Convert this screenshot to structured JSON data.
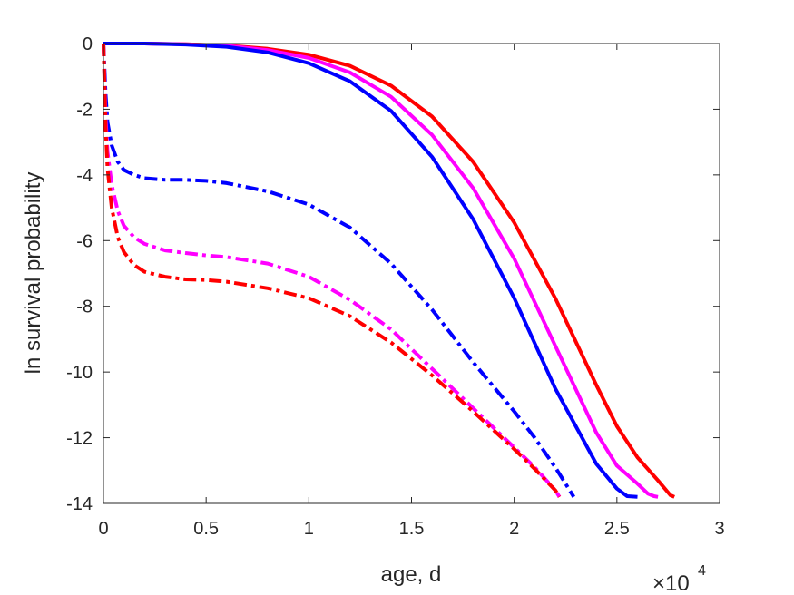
{
  "chart_data": {
    "type": "line",
    "xlabel": "age, d",
    "ylabel": "ln survival probability",
    "x_exponent_label": "×10",
    "x_exponent_power": "4",
    "xlim": [
      0,
      30000
    ],
    "ylim": [
      -14,
      0
    ],
    "x_ticks": [
      0,
      5000,
      10000,
      15000,
      20000,
      25000,
      30000
    ],
    "x_tick_labels": [
      "0",
      "0.5",
      "1",
      "1.5",
      "2",
      "2.5",
      "3"
    ],
    "y_ticks": [
      0,
      -2,
      -4,
      -6,
      -8,
      -10,
      -12,
      -14
    ],
    "y_tick_labels": [
      "0",
      "-2",
      "-4",
      "-6",
      "-8",
      "-10",
      "-12",
      "-14"
    ],
    "grid": false,
    "series": [
      {
        "color": "#ff0000",
        "style": "solid",
        "x": [
          0,
          2000,
          4000,
          6000,
          8000,
          10000,
          12000,
          14000,
          16000,
          18000,
          20000,
          22000,
          24000,
          25000,
          26000,
          27000,
          27600,
          27800
        ],
        "y": [
          0,
          0,
          -0.02,
          -0.06,
          -0.16,
          -0.34,
          -0.68,
          -1.28,
          -2.22,
          -3.6,
          -5.45,
          -7.75,
          -10.4,
          -11.65,
          -12.6,
          -13.3,
          -13.75,
          -13.8
        ]
      },
      {
        "color": "#ff00ff",
        "style": "solid",
        "x": [
          0,
          2000,
          4000,
          6000,
          8000,
          10000,
          12000,
          14000,
          16000,
          18000,
          20000,
          22000,
          24000,
          25000,
          26000,
          26500,
          26800,
          27000
        ],
        "y": [
          0,
          0,
          -0.02,
          -0.07,
          -0.2,
          -0.44,
          -0.88,
          -1.62,
          -2.78,
          -4.4,
          -6.55,
          -9.2,
          -11.85,
          -12.85,
          -13.4,
          -13.7,
          -13.78,
          -13.8
        ]
      },
      {
        "color": "#0000ff",
        "style": "solid",
        "x": [
          0,
          2000,
          4000,
          6000,
          8000,
          10000,
          12000,
          14000,
          16000,
          18000,
          20000,
          22000,
          24000,
          25000,
          25500,
          26000
        ],
        "y": [
          0,
          0,
          -0.03,
          -0.1,
          -0.27,
          -0.6,
          -1.15,
          -2.05,
          -3.45,
          -5.35,
          -7.75,
          -10.5,
          -12.8,
          -13.55,
          -13.78,
          -13.8
        ]
      },
      {
        "color": "#0000ff",
        "style": "dashdot",
        "x": [
          0,
          100,
          200,
          400,
          700,
          1000,
          1500,
          2000,
          3000,
          4000,
          5000,
          6000,
          8000,
          10000,
          12000,
          14000,
          16000,
          18000,
          20000,
          21000,
          22000,
          22500,
          22900
        ],
        "y": [
          0,
          -1.5,
          -2.4,
          -3.1,
          -3.6,
          -3.85,
          -4.0,
          -4.1,
          -4.15,
          -4.15,
          -4.18,
          -4.25,
          -4.5,
          -4.9,
          -5.6,
          -6.7,
          -8.1,
          -9.7,
          -11.2,
          -12.0,
          -12.9,
          -13.4,
          -13.8
        ]
      },
      {
        "color": "#ff00ff",
        "style": "dashdot",
        "x": [
          0,
          100,
          200,
          400,
          700,
          1000,
          1500,
          2000,
          3000,
          4000,
          5000,
          6000,
          8000,
          10000,
          12000,
          14000,
          16000,
          18000,
          20000,
          21000,
          22000,
          22200
        ],
        "y": [
          0,
          -2.2,
          -3.3,
          -4.3,
          -5.1,
          -5.55,
          -5.9,
          -6.1,
          -6.3,
          -6.38,
          -6.45,
          -6.5,
          -6.7,
          -7.1,
          -7.8,
          -8.7,
          -9.9,
          -11.1,
          -12.3,
          -12.9,
          -13.6,
          -13.8
        ]
      },
      {
        "color": "#ff0000",
        "style": "dashdot",
        "x": [
          0,
          100,
          200,
          400,
          700,
          1000,
          1500,
          2000,
          3000,
          4000,
          5000,
          6000,
          8000,
          10000,
          12000,
          14000,
          16000,
          18000,
          20000,
          21000,
          22000,
          22200
        ],
        "y": [
          0,
          -2.5,
          -3.8,
          -5.0,
          -5.9,
          -6.35,
          -6.75,
          -6.95,
          -7.1,
          -7.18,
          -7.2,
          -7.25,
          -7.45,
          -7.75,
          -8.3,
          -9.1,
          -10.1,
          -11.2,
          -12.35,
          -12.95,
          -13.6,
          -13.8
        ]
      }
    ]
  }
}
